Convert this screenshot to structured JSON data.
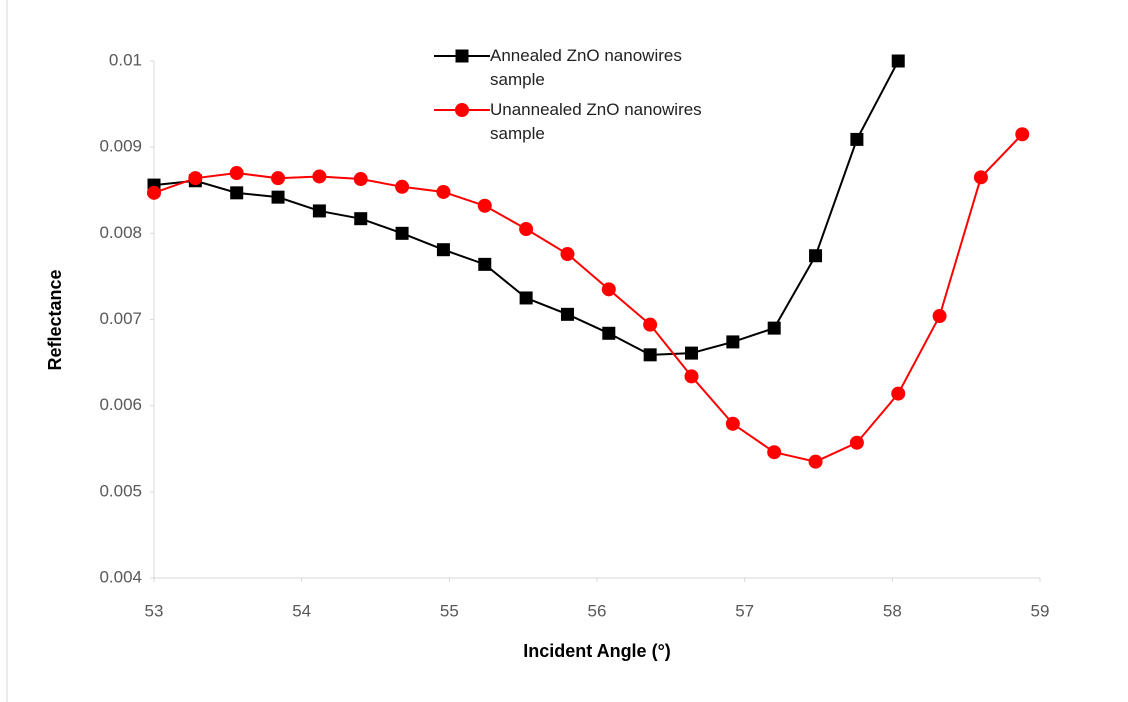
{
  "chart_data": {
    "type": "line",
    "x_label": "Incident Angle (°)",
    "y_label": "Reflectance",
    "xlim": [
      53,
      59
    ],
    "xticks": [
      53,
      54,
      55,
      56,
      57,
      58,
      59
    ],
    "ylim": [
      0.004,
      0.01
    ],
    "yticks": [
      0.004,
      0.005,
      0.006,
      0.007,
      0.008,
      0.009,
      0.01
    ],
    "grid": false,
    "legend": "top",
    "series": [
      {
        "name": "Annealed ZnO nanowires sample",
        "color": "#000000",
        "marker": "square",
        "x": [
          53,
          53.28,
          53.56,
          53.84,
          54.12,
          54.4,
          54.68,
          54.96,
          55.24,
          55.52,
          55.8,
          56.08,
          56.36,
          56.64,
          56.92,
          57.2,
          57.48,
          57.76,
          58.04
        ],
        "values": [
          0.00856,
          0.00861,
          0.00847,
          0.00842,
          0.00826,
          0.00817,
          0.008,
          0.00781,
          0.00764,
          0.00725,
          0.00706,
          0.00684,
          0.00659,
          0.00661,
          0.00674,
          0.0069,
          0.00774,
          0.00909,
          0.01
        ]
      },
      {
        "name": "Unannealed ZnO nanowires sample",
        "color": "#ff0000",
        "marker": "circle",
        "x": [
          53,
          53.28,
          53.56,
          53.84,
          54.12,
          54.4,
          54.68,
          54.96,
          55.24,
          55.52,
          55.8,
          56.08,
          56.36,
          56.64,
          56.92,
          57.2,
          57.48,
          57.76,
          58.04,
          58.32,
          58.6,
          58.88
        ],
        "values": [
          0.00847,
          0.00864,
          0.0087,
          0.00864,
          0.00866,
          0.00863,
          0.00854,
          0.00848,
          0.00832,
          0.00805,
          0.00776,
          0.00735,
          0.00694,
          0.00634,
          0.00579,
          0.00546,
          0.00535,
          0.00557,
          0.00614,
          0.00704,
          0.00865,
          0.00915
        ]
      }
    ]
  }
}
